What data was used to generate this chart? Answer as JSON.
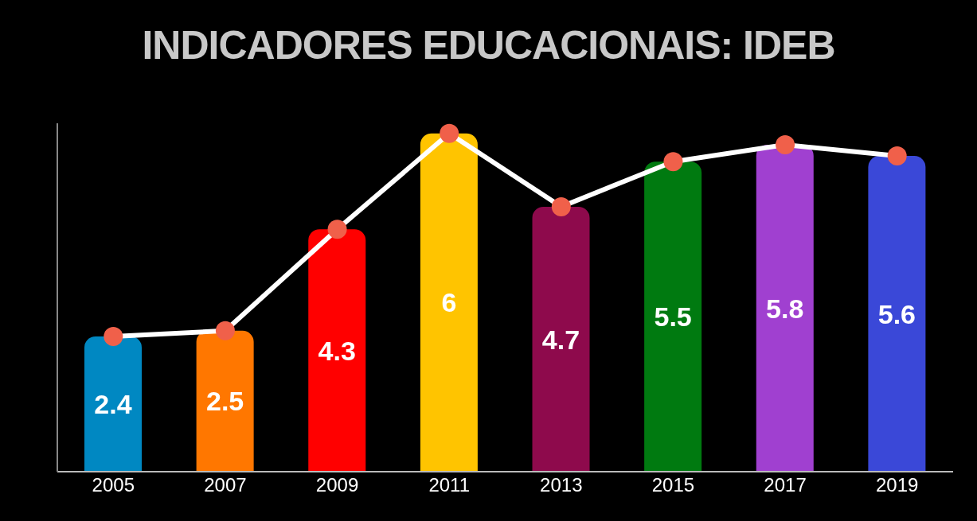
{
  "chart_data": {
    "type": "bar",
    "title": "INDICADORES EDUCACIONAIS: IDEB",
    "categories": [
      "2005",
      "2007",
      "2009",
      "2011",
      "2013",
      "2015",
      "2017",
      "2019"
    ],
    "series": [
      {
        "colors": [
          "#0088c2",
          "#ff7700",
          "#ff0000",
          "#ffc400",
          "#8e0a4c",
          "#007a10",
          "#a040d0",
          "#3a48d8"
        ],
        "values": [
          2.4,
          2.5,
          4.3,
          6,
          4.7,
          5.5,
          5.8,
          5.6
        ],
        "value_labels": [
          "2.4",
          "2.5",
          "4.3",
          "6",
          "4.7",
          "5.5",
          "5.8",
          "5.6"
        ]
      },
      {
        "type": "line",
        "color": "#ffffff",
        "values": [
          2.4,
          2.5,
          4.3,
          6,
          4.7,
          5.5,
          5.8,
          5.6
        ]
      }
    ],
    "marker": "circle",
    "grid": false,
    "legend": false
  }
}
